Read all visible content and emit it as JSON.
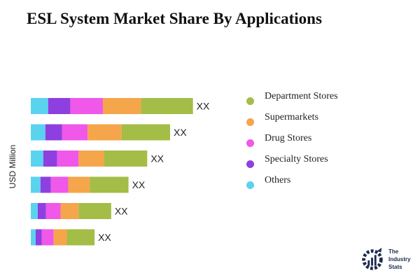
{
  "chart_data": {
    "type": "bar",
    "orientation": "horizontal",
    "stacked": true,
    "title": "ESL System Market Share By Applications",
    "ylabel": "USD Million",
    "categories": [
      "",
      "",
      "",
      "",
      "",
      ""
    ],
    "series": [
      {
        "name": "Others",
        "color": "#5ad3ef",
        "values": [
          25,
          21,
          18,
          14,
          10,
          7
        ]
      },
      {
        "name": "Specialty Stores",
        "color": "#8e3fe0",
        "values": [
          32,
          24,
          20,
          15,
          12,
          9
        ]
      },
      {
        "name": "Drug Stores",
        "color": "#ef58e8",
        "values": [
          47,
          37,
          31,
          25,
          21,
          17
        ]
      },
      {
        "name": "Supermarkets",
        "color": "#f5a54a",
        "values": [
          55,
          49,
          37,
          31,
          26,
          19
        ]
      },
      {
        "name": "Department Stores",
        "color": "#a3bd47",
        "values": [
          75,
          70,
          62,
          56,
          47,
          40
        ]
      }
    ],
    "data_labels": [
      "XX",
      "XX",
      "XX",
      "XX",
      "XX",
      "XX"
    ],
    "legend_position": "right",
    "grid": false
  },
  "legend": [
    {
      "label": "Department Stores",
      "color": "#a3bd47"
    },
    {
      "label": "Supermarkets",
      "color": "#f5a54a"
    },
    {
      "label": "Drug Stores",
      "color": "#ef58e8"
    },
    {
      "label": "Specialty Stores",
      "color": "#8e3fe0"
    },
    {
      "label": "Others",
      "color": "#5ad3ef"
    }
  ],
  "logo": {
    "line1": "The",
    "line2": "Industry",
    "line3": "Stats"
  }
}
